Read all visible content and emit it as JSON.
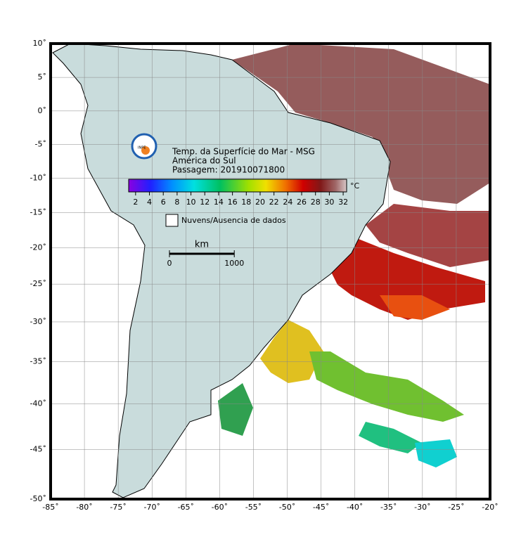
{
  "map": {
    "title": "Temp. da Superfície do Mar - MSG",
    "region": "América do Sul",
    "pass": "Passagem: 201910071800",
    "logo": "INPE",
    "lonlim": [
      -85,
      -20
    ],
    "latlim": [
      -50,
      10
    ],
    "lonticks": [
      {
        "value": -85,
        "label": "-85˚"
      },
      {
        "value": -80,
        "label": "-80˚"
      },
      {
        "value": -75,
        "label": "-75˚"
      },
      {
        "value": -70,
        "label": "-70˚"
      },
      {
        "value": -65,
        "label": "-65˚"
      },
      {
        "value": -60,
        "label": "-60˚"
      },
      {
        "value": -55,
        "label": "-55˚"
      },
      {
        "value": -50,
        "label": "-50˚"
      },
      {
        "value": -45,
        "label": "-45˚"
      },
      {
        "value": -40,
        "label": "-40˚"
      },
      {
        "value": -35,
        "label": "-35˚"
      },
      {
        "value": -30,
        "label": "-30˚"
      },
      {
        "value": -25,
        "label": "-25˚"
      },
      {
        "value": -20,
        "label": "-20˚"
      }
    ],
    "latticks": [
      {
        "value": 10,
        "label": "10˚"
      },
      {
        "value": 5,
        "label": "5˚"
      },
      {
        "value": 0,
        "label": "0˚"
      },
      {
        "value": -5,
        "label": "-5˚"
      },
      {
        "value": -10,
        "label": "-10˚"
      },
      {
        "value": -15,
        "label": "-15˚"
      },
      {
        "value": -20,
        "label": "-20˚"
      },
      {
        "value": -25,
        "label": "-25˚"
      },
      {
        "value": -30,
        "label": "-30˚"
      },
      {
        "value": -35,
        "label": "-35˚"
      },
      {
        "value": -40,
        "label": "-40˚"
      },
      {
        "value": -45,
        "label": "-45˚"
      },
      {
        "value": -50,
        "label": "-50˚"
      }
    ],
    "grid": true,
    "colorbar": {
      "unit": "°C",
      "clim": [
        1,
        32.5
      ],
      "ticks": [
        2,
        4,
        6,
        8,
        10,
        12,
        14,
        16,
        18,
        20,
        22,
        24,
        26,
        28,
        30,
        32
      ]
    },
    "legend": "Nuvens/Ausencia de dados",
    "scale_bar": {
      "label": "km",
      "ticks": [
        0,
        1000
      ]
    }
  }
}
